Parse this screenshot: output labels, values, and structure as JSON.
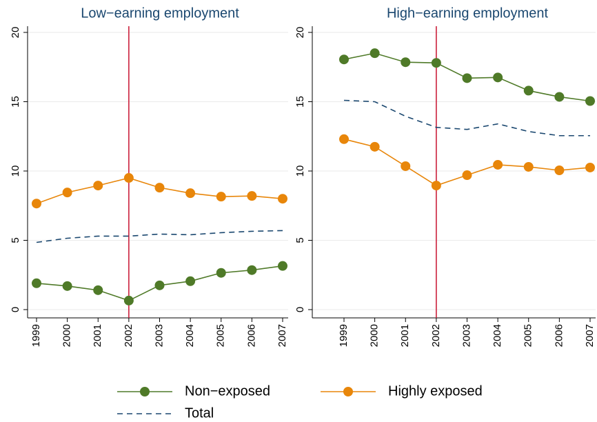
{
  "chart_data": [
    {
      "type": "line",
      "title": "Low−earning employment",
      "categories": [
        "1999",
        "2000",
        "2001",
        "2002",
        "2003",
        "2004",
        "2005",
        "2006",
        "2007"
      ],
      "ylim": [
        0,
        20
      ],
      "yticks": [
        0,
        5,
        10,
        15,
        20
      ],
      "grid": true,
      "vline": {
        "x": "2002",
        "color": "#c8102e"
      },
      "series": [
        {
          "name": "Non−exposed",
          "color": "#4f7a28",
          "marker": true,
          "values": [
            1.9,
            1.7,
            1.4,
            0.65,
            1.75,
            2.05,
            2.65,
            2.85,
            3.15
          ]
        },
        {
          "name": "Highly exposed",
          "color": "#e8860a",
          "marker": true,
          "values": [
            7.65,
            8.45,
            8.95,
            9.5,
            8.8,
            8.4,
            8.15,
            8.2,
            8.0
          ]
        },
        {
          "name": "Total",
          "color": "#1a476f",
          "dash": "8,6",
          "values": [
            4.85,
            5.15,
            5.3,
            5.3,
            5.45,
            5.4,
            5.55,
            5.65,
            5.7
          ]
        }
      ]
    },
    {
      "type": "line",
      "title": "High−earning employment",
      "categories": [
        "1999",
        "2000",
        "2001",
        "2002",
        "2003",
        "2004",
        "2005",
        "2006",
        "2007"
      ],
      "ylim": [
        0,
        20
      ],
      "yticks": [
        0,
        5,
        10,
        15,
        20
      ],
      "grid": true,
      "vline": {
        "x": "2002",
        "color": "#c8102e"
      },
      "series": [
        {
          "color": "#4f7a28",
          "marker": true,
          "values": [
            18.05,
            18.5,
            17.85,
            17.8,
            16.7,
            16.75,
            15.8,
            15.35,
            15.05
          ]
        },
        {
          "color": "#e8860a",
          "marker": true,
          "values": [
            12.3,
            11.75,
            10.35,
            8.95,
            9.7,
            10.45,
            10.3,
            10.05,
            10.25
          ]
        },
        {
          "color": "#1a476f",
          "dash": "8,6",
          "values": [
            15.1,
            15.0,
            13.95,
            13.15,
            13.0,
            13.4,
            12.85,
            12.55,
            12.55
          ]
        }
      ]
    }
  ]
}
